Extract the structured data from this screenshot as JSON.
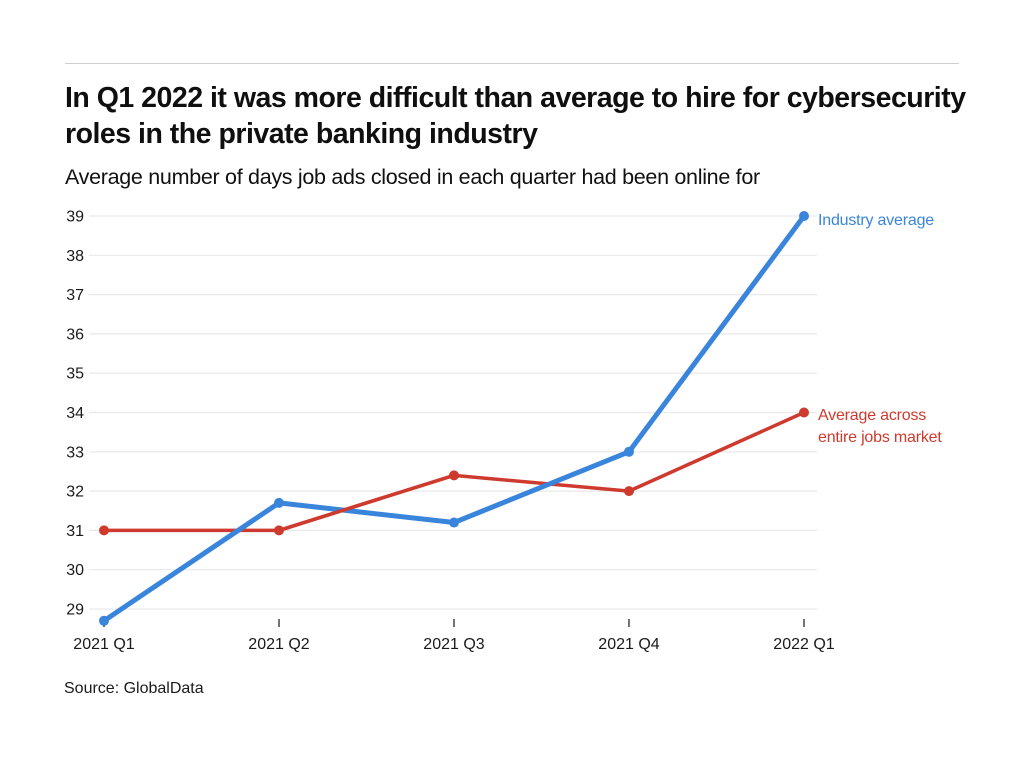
{
  "header": {
    "title": "In Q1 2022 it was more difficult than average to hire for cybersecurity roles in the private banking industry",
    "subtitle": "Average number of days job ads closed in each quarter had been online for"
  },
  "footer": {
    "source": "Source: GlobalData"
  },
  "colors": {
    "industry_blue": "#3A85DC",
    "market_red": "#CE3A2D",
    "gridline": "#e9e9e9",
    "tick": "#444444",
    "axis_text": "#1a1a1a",
    "divider": "#cfcfcf"
  },
  "chart_data": {
    "type": "line",
    "title": "In Q1 2022 it was more difficult than average to hire for cybersecurity roles in the private banking industry",
    "subtitle": "Average number of days job ads closed in each quarter had been online for",
    "categories": [
      "2021 Q1",
      "2021 Q2",
      "2021 Q3",
      "2021 Q4",
      "2022 Q1"
    ],
    "series": [
      {
        "name": "Industry average",
        "color": "#3A85DC",
        "values": [
          28.7,
          31.7,
          31.2,
          33,
          39
        ],
        "label_lines": [
          "Industry average"
        ]
      },
      {
        "name": "Average across entire jobs market",
        "color": "#CE3A2D",
        "values": [
          31,
          31,
          32.4,
          32,
          34
        ],
        "label_lines": [
          "Average across",
          "entire jobs market"
        ]
      }
    ],
    "y_ticks": [
      29,
      30,
      31,
      32,
      33,
      34,
      35,
      36,
      37,
      38,
      39
    ],
    "ylim": [
      28.5,
      39.3
    ],
    "xlabel": "",
    "ylabel": "",
    "grid": "horizontal-only",
    "legend_position": "right-of-line-ends",
    "source": "Source: GlobalData"
  }
}
